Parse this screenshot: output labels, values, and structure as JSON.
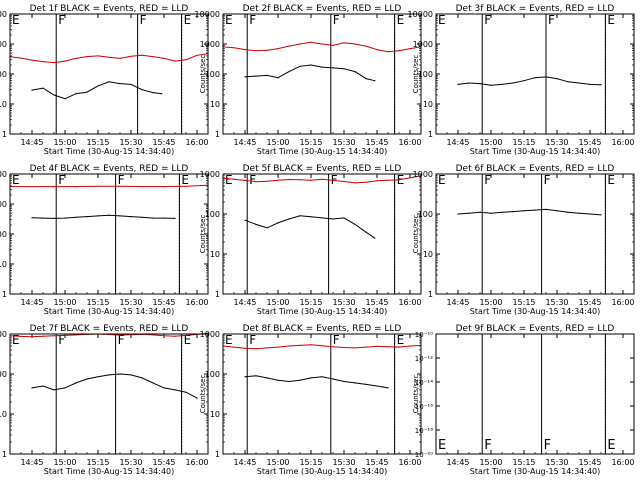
{
  "figure": {
    "xlabel": "Start Time (30-Aug-15 14:34:40)",
    "ylabel": "Counts/sec",
    "xticks": [
      "14:45",
      "15:00",
      "15:15",
      "15:30",
      "15:45",
      "16:00"
    ],
    "yticks_log": [
      "1",
      "10",
      "100",
      "1000",
      "10000"
    ],
    "yticks_tiny": [
      "10⁻²⁰",
      "10⁻¹⁸",
      "10⁻¹⁶",
      "10⁻¹⁴",
      "10⁻¹²",
      "10⁻¹⁰"
    ],
    "colors": {
      "events": "#000000",
      "lld": "#cc0000"
    }
  },
  "chart_data": [
    {
      "type": "line",
      "title": "Det 1f BLACK = Events, RED = LLD",
      "ylim": [
        1,
        10000
      ],
      "yscale": "log",
      "markers": [
        {
          "t": "14:35",
          "label": "E"
        },
        {
          "t": "14:56",
          "label": "F"
        },
        {
          "t": "15:33",
          "label": "F"
        },
        {
          "t": "15:53",
          "label": "E"
        }
      ],
      "dotted": [
        "14:35",
        "15:53",
        "16:05"
      ],
      "series": [
        {
          "name": "Events",
          "x": [
            "14:45",
            "14:50",
            "14:55",
            "15:00",
            "15:05",
            "15:10",
            "15:15",
            "15:20",
            "15:25",
            "15:30",
            "15:35",
            "15:40",
            "15:44"
          ],
          "values": [
            29,
            34,
            20,
            15,
            22,
            25,
            40,
            55,
            48,
            45,
            30,
            24,
            22
          ]
        },
        {
          "name": "LLD",
          "x": [
            "14:35",
            "14:40",
            "14:45",
            "14:50",
            "14:55",
            "15:00",
            "15:05",
            "15:10",
            "15:15",
            "15:20",
            "15:25",
            "15:30",
            "15:35",
            "15:40",
            "15:45",
            "15:50",
            "15:55",
            "16:00",
            "16:05"
          ],
          "values": [
            380,
            340,
            290,
            260,
            240,
            270,
            330,
            380,
            400,
            360,
            330,
            390,
            420,
            380,
            330,
            270,
            300,
            420,
            480
          ]
        }
      ]
    },
    {
      "type": "line",
      "title": "Det 2f BLACK = Events, RED = LLD",
      "ylim": [
        1,
        10000
      ],
      "yscale": "log",
      "markers": [
        {
          "t": "14:35",
          "label": "E"
        },
        {
          "t": "14:46",
          "label": "F"
        },
        {
          "t": "15:24",
          "label": "F"
        },
        {
          "t": "15:53",
          "label": "E"
        }
      ],
      "dotted": [
        "14:35",
        "15:53",
        "16:05"
      ],
      "series": [
        {
          "name": "Events",
          "x": [
            "14:45",
            "14:50",
            "14:55",
            "15:00",
            "15:05",
            "15:10",
            "15:15",
            "15:20",
            "15:25",
            "15:30",
            "15:35",
            "15:40",
            "15:44"
          ],
          "values": [
            80,
            85,
            90,
            75,
            120,
            180,
            200,
            170,
            160,
            150,
            120,
            70,
            60
          ]
        },
        {
          "name": "LLD",
          "x": [
            "14:35",
            "14:40",
            "14:45",
            "14:50",
            "14:55",
            "15:00",
            "15:05",
            "15:10",
            "15:15",
            "15:20",
            "15:25",
            "15:30",
            "15:35",
            "15:40",
            "15:45",
            "15:50",
            "15:55",
            "16:00",
            "16:05"
          ],
          "values": [
            800,
            750,
            650,
            600,
            620,
            700,
            850,
            1000,
            1150,
            1000,
            900,
            1100,
            1000,
            850,
            650,
            550,
            600,
            700,
            800
          ]
        }
      ]
    },
    {
      "type": "line",
      "title": "Det 3f BLACK = Events, RED = LLD",
      "ylim": [
        1,
        10000
      ],
      "yscale": "log",
      "markers": [
        {
          "t": "14:35",
          "label": "E"
        },
        {
          "t": "14:56",
          "label": "F"
        },
        {
          "t": "15:25",
          "label": "F"
        },
        {
          "t": "15:52",
          "label": "E"
        }
      ],
      "dotted": [
        "14:35",
        "15:52",
        "16:05"
      ],
      "series": [
        {
          "name": "Events",
          "x": [
            "14:45",
            "14:50",
            "14:55",
            "15:00",
            "15:05",
            "15:10",
            "15:15",
            "15:20",
            "15:25",
            "15:30",
            "15:35",
            "15:40",
            "15:45",
            "15:50"
          ],
          "values": [
            45,
            50,
            48,
            42,
            45,
            50,
            60,
            75,
            80,
            70,
            55,
            50,
            45,
            44
          ]
        }
      ]
    },
    {
      "type": "line",
      "title": "Det 4f BLACK = Events, RED = LLD",
      "ylim": [
        1,
        10000
      ],
      "yscale": "log",
      "markers": [
        {
          "t": "14:35",
          "label": "E"
        },
        {
          "t": "14:56",
          "label": "F"
        },
        {
          "t": "15:23",
          "label": "F"
        },
        {
          "t": "15:52",
          "label": "E"
        }
      ],
      "dotted": [
        "14:35",
        "15:52",
        "16:05"
      ],
      "series": [
        {
          "name": "Events",
          "x": [
            "14:45",
            "14:50",
            "14:55",
            "15:00",
            "15:05",
            "15:10",
            "15:15",
            "15:20",
            "15:25",
            "15:30",
            "15:35",
            "15:40",
            "15:45",
            "15:50"
          ],
          "values": [
            350,
            340,
            330,
            340,
            360,
            380,
            400,
            420,
            400,
            380,
            360,
            340,
            340,
            330
          ]
        },
        {
          "name": "LLD",
          "x": [
            "14:35",
            "14:45",
            "14:55",
            "15:05",
            "15:15",
            "15:25",
            "15:35",
            "15:45",
            "15:55",
            "16:05"
          ],
          "values": [
            3800,
            3800,
            3800,
            3800,
            3900,
            3900,
            3800,
            3800,
            3900,
            4200
          ]
        }
      ]
    },
    {
      "type": "line",
      "title": "Det 5f BLACK = Events, RED = LLD",
      "ylim": [
        1,
        1000
      ],
      "yscale": "log",
      "markers": [
        {
          "t": "14:35",
          "label": "E"
        },
        {
          "t": "14:46",
          "label": "F"
        },
        {
          "t": "15:23",
          "label": "F"
        },
        {
          "t": "15:53",
          "label": "E"
        }
      ],
      "dotted": [
        "14:35",
        "15:53",
        "16:05"
      ],
      "series": [
        {
          "name": "Events",
          "x": [
            "14:45",
            "14:50",
            "14:55",
            "15:00",
            "15:05",
            "15:10",
            "15:15",
            "15:20",
            "15:25",
            "15:30",
            "15:35",
            "15:40",
            "15:44"
          ],
          "values": [
            70,
            55,
            45,
            60,
            75,
            90,
            85,
            80,
            75,
            80,
            55,
            35,
            25
          ]
        },
        {
          "name": "LLD",
          "x": [
            "14:35",
            "14:40",
            "14:45",
            "14:50",
            "14:55",
            "15:00",
            "15:05",
            "15:10",
            "15:15",
            "15:20",
            "15:25",
            "15:30",
            "15:35",
            "15:40",
            "15:45",
            "15:50",
            "15:55",
            "16:00",
            "16:05"
          ],
          "values": [
            780,
            740,
            690,
            640,
            660,
            700,
            730,
            720,
            700,
            740,
            690,
            650,
            600,
            620,
            680,
            700,
            720,
            800,
            900
          ]
        }
      ]
    },
    {
      "type": "line",
      "title": "Det 6f BLACK = Events, RED = LLD",
      "ylim": [
        1,
        1000
      ],
      "yscale": "log",
      "markers": [
        {
          "t": "14:35",
          "label": "E"
        },
        {
          "t": "14:56",
          "label": "F"
        },
        {
          "t": "15:23",
          "label": "F"
        },
        {
          "t": "15:52",
          "label": "E"
        }
      ],
      "dotted": [
        "14:35",
        "15:52",
        "16:05"
      ],
      "series": [
        {
          "name": "Events",
          "x": [
            "14:45",
            "14:50",
            "14:55",
            "15:00",
            "15:05",
            "15:10",
            "15:15",
            "15:20",
            "15:25",
            "15:30",
            "15:35",
            "15:40",
            "15:45",
            "15:50"
          ],
          "values": [
            100,
            105,
            110,
            105,
            110,
            115,
            120,
            125,
            130,
            120,
            110,
            105,
            100,
            95
          ]
        }
      ]
    },
    {
      "type": "line",
      "title": "Det 7f BLACK = Events, RED = LLD",
      "ylim": [
        1,
        1000
      ],
      "yscale": "log",
      "markers": [
        {
          "t": "14:35",
          "label": "E"
        },
        {
          "t": "14:56",
          "label": "F"
        },
        {
          "t": "15:23",
          "label": "F"
        },
        {
          "t": "15:53",
          "label": "E"
        }
      ],
      "dotted": [
        "14:35",
        "15:53",
        "16:05"
      ],
      "series": [
        {
          "name": "Events",
          "x": [
            "14:45",
            "14:50",
            "14:55",
            "15:00",
            "15:05",
            "15:10",
            "15:15",
            "15:20",
            "15:25",
            "15:30",
            "15:35",
            "15:40",
            "15:45",
            "15:50",
            "15:55",
            "16:00"
          ],
          "values": [
            45,
            50,
            40,
            45,
            60,
            75,
            85,
            95,
            100,
            95,
            80,
            60,
            45,
            40,
            35,
            25
          ]
        },
        {
          "name": "LLD",
          "x": [
            "14:35",
            "14:40",
            "14:45",
            "14:50",
            "14:55",
            "15:00",
            "15:05",
            "15:10",
            "15:15",
            "15:20",
            "15:25",
            "15:30",
            "15:35",
            "15:40",
            "15:45",
            "15:50",
            "15:55",
            "16:00",
            "16:05"
          ],
          "values": [
            900,
            870,
            850,
            880,
            900,
            920,
            950,
            980,
            1000,
            970,
            940,
            960,
            990,
            950,
            900,
            880,
            920,
            980,
            1050
          ]
        }
      ]
    },
    {
      "type": "line",
      "title": "Det 8f BLACK = Events, RED = LLD",
      "ylim": [
        1,
        1000
      ],
      "yscale": "log",
      "markers": [
        {
          "t": "14:35",
          "label": "E"
        },
        {
          "t": "14:46",
          "label": "F"
        },
        {
          "t": "15:24",
          "label": "F"
        },
        {
          "t": "15:53",
          "label": "E"
        }
      ],
      "dotted": [
        "14:35",
        "15:53",
        "16:05"
      ],
      "series": [
        {
          "name": "Events",
          "x": [
            "14:45",
            "14:50",
            "14:55",
            "15:00",
            "15:05",
            "15:10",
            "15:15",
            "15:20",
            "15:25",
            "15:30",
            "15:35",
            "15:40",
            "15:45",
            "15:50"
          ],
          "values": [
            85,
            90,
            80,
            70,
            65,
            70,
            80,
            85,
            75,
            65,
            60,
            55,
            50,
            45
          ]
        },
        {
          "name": "LLD",
          "x": [
            "14:35",
            "14:40",
            "14:45",
            "14:50",
            "14:55",
            "15:00",
            "15:05",
            "15:10",
            "15:15",
            "15:20",
            "15:25",
            "15:30",
            "15:35",
            "15:40",
            "15:45",
            "15:50",
            "15:55",
            "16:00",
            "16:05"
          ],
          "values": [
            500,
            470,
            440,
            430,
            450,
            470,
            500,
            520,
            540,
            510,
            480,
            460,
            450,
            470,
            490,
            480,
            470,
            500,
            520
          ]
        }
      ]
    },
    {
      "type": "line",
      "title": "Det 9f BLACK = Events, RED = LLD",
      "yscale": "log",
      "markers": [
        {
          "t": "14:35",
          "label": "E"
        },
        {
          "t": "14:56",
          "label": "F"
        },
        {
          "t": "15:23",
          "label": "F"
        },
        {
          "t": "15:52",
          "label": "E"
        }
      ],
      "dotted": [
        "14:35",
        "15:52",
        "16:05"
      ],
      "series": []
    }
  ]
}
